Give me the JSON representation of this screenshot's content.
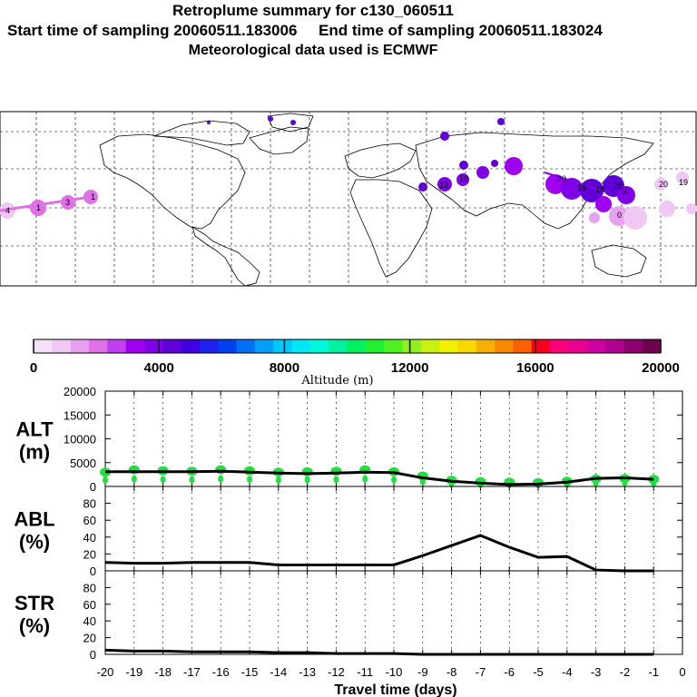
{
  "header": {
    "title": "Retroplume summary for c130_060511",
    "sampling": "Start time of sampling 20060511.183006     End time of sampling 20060511.183024",
    "met": "Meteorological data used is ECMWF"
  },
  "colorbar": {
    "ticks": [
      "0",
      "4000",
      "8000",
      "12000",
      "16000",
      "20000"
    ],
    "label": "Altitude (m)",
    "colors": [
      "#f4e0f8",
      "#f0c8f4",
      "#e8a0f0",
      "#e070e8",
      "#c040f0",
      "#a000f0",
      "#8000e8",
      "#6000d8",
      "#4000e0",
      "#2020f0",
      "#0040f0",
      "#0070f8",
      "#00a0f8",
      "#00c8f8",
      "#00e8f8",
      "#00f8d8",
      "#00f0a0",
      "#00f060",
      "#20f030",
      "#50f020",
      "#90f020",
      "#c8f010",
      "#f0f000",
      "#f8d800",
      "#f8b000",
      "#f88800",
      "#f86000",
      "#f80020",
      "#f8007a",
      "#e80090",
      "#d000a0",
      "#b00090",
      "#900070",
      "#700050"
    ]
  },
  "panels": {
    "alt": {
      "label1": "ALT",
      "label2": "(m)",
      "yticks": [
        "20000",
        "15000",
        "10000",
        "5000",
        "0"
      ]
    },
    "abl": {
      "label1": "ABL",
      "label2": "(%)",
      "yticks": [
        "80",
        "60",
        "40",
        "20",
        "0"
      ]
    },
    "str": {
      "label1": "STR",
      "label2": "(%)",
      "yticks": [
        "80",
        "60",
        "40",
        "20",
        "0"
      ]
    }
  },
  "xaxis": {
    "ticks": [
      "-20",
      "-19",
      "-18",
      "-17",
      "-16",
      "-15",
      "-14",
      "-13",
      "-12",
      "-11",
      "-10",
      "-9",
      "-8",
      "-7",
      "-6",
      "-5",
      "-4",
      "-3",
      "-2",
      "-1",
      "0"
    ],
    "label": "Travel time (days)"
  },
  "map": {
    "plume_labels": [
      "20",
      "19",
      "18",
      "20",
      "19",
      "10",
      "20",
      "19",
      "1",
      "3",
      "1",
      "4",
      "3",
      "0"
    ]
  },
  "chart_data": [
    {
      "type": "line",
      "title": "ALT",
      "xlabel": "Travel time (days)",
      "ylabel": "(m)",
      "ylim": [
        0,
        20000
      ],
      "xlim": [
        -20,
        0
      ],
      "x": [
        -20,
        -19,
        -18,
        -17,
        -16,
        -15,
        -14,
        -13,
        -12,
        -11,
        -10,
        -9,
        -8,
        -7,
        -6,
        -5,
        -4,
        -3,
        -2,
        -1
      ],
      "series": [
        {
          "name": "mean altitude",
          "values": [
            3100,
            3100,
            3100,
            3100,
            3200,
            3000,
            2800,
            2700,
            2800,
            3000,
            2900,
            1800,
            1100,
            700,
            400,
            500,
            900,
            1700,
            1800,
            1500
          ]
        },
        {
          "name": "dot altitude",
          "values": [
            3000,
            3500,
            3300,
            3200,
            3500,
            3300,
            3000,
            3100,
            3200,
            3500,
            3100,
            2200,
            1300,
            1000,
            900,
            800,
            1100,
            1600,
            1700,
            1500
          ]
        }
      ]
    },
    {
      "type": "line",
      "title": "ABL",
      "ylabel": "(%)",
      "ylim": [
        0,
        100
      ],
      "xlim": [
        -20,
        0
      ],
      "x": [
        -20,
        -19,
        -18,
        -17,
        -16,
        -15,
        -14,
        -13,
        -12,
        -11,
        -10,
        -9,
        -8,
        -7,
        -6,
        -5,
        -4,
        -3,
        -2,
        -1
      ],
      "series": [
        {
          "name": "ABL",
          "values": [
            10,
            9,
            9,
            10,
            10,
            10,
            7,
            7,
            7,
            7,
            7,
            18,
            30,
            42,
            28,
            16,
            17,
            1,
            0,
            0
          ]
        }
      ]
    },
    {
      "type": "line",
      "title": "STR",
      "ylabel": "(%)",
      "ylim": [
        0,
        100
      ],
      "xlim": [
        -20,
        0
      ],
      "x": [
        -20,
        -19,
        -18,
        -17,
        -16,
        -15,
        -14,
        -13,
        -12,
        -11,
        -10,
        -9,
        -8,
        -7,
        -6,
        -5,
        -4,
        -3,
        -2,
        -1
      ],
      "series": [
        {
          "name": "STR",
          "values": [
            5,
            4,
            4,
            3,
            3,
            3,
            2,
            2,
            1,
            1,
            1,
            0,
            0,
            0,
            0,
            0,
            0,
            0,
            0,
            0
          ]
        }
      ]
    }
  ]
}
